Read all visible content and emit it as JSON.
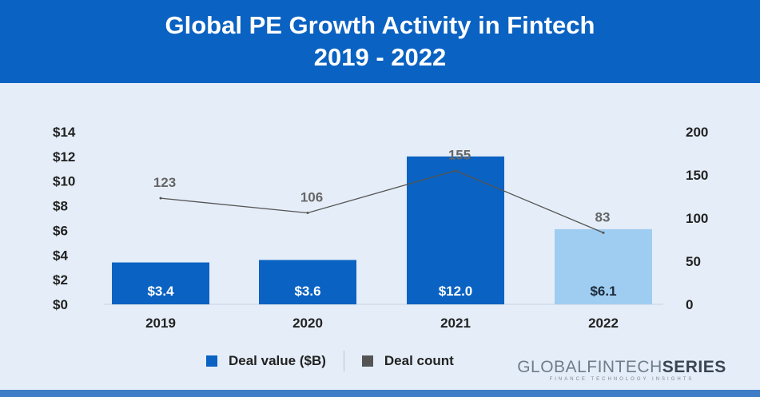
{
  "header": {
    "title_line1": "Global PE Growth Activity in Fintech",
    "title_line2": "2019 - 2022"
  },
  "chart_data": {
    "type": "bar",
    "categories": [
      "2019",
      "2020",
      "2021",
      "2022"
    ],
    "series": [
      {
        "name": "Deal value ($B)",
        "type": "bar",
        "axis": "left",
        "values": [
          3.4,
          3.6,
          12.0,
          6.1
        ],
        "labels": [
          "$3.4",
          "$3.6",
          "$12.0",
          "$6.1"
        ],
        "colors": [
          "#0a62c2",
          "#0a62c2",
          "#0a62c2",
          "#9fcdf1"
        ]
      },
      {
        "name": "Deal count",
        "type": "line",
        "axis": "right",
        "values": [
          123,
          106,
          155,
          83
        ],
        "labels": [
          "123",
          "106",
          "155",
          "83"
        ],
        "color": "#555555"
      }
    ],
    "y_left": {
      "ylim": [
        0,
        14
      ],
      "ticks": [
        0,
        2,
        4,
        6,
        8,
        10,
        12,
        14
      ],
      "tick_labels": [
        "$0",
        "$2",
        "$4",
        "$6",
        "$8",
        "$10",
        "$12",
        "$14"
      ]
    },
    "y_right": {
      "ylim": [
        0,
        200
      ],
      "ticks": [
        0,
        50,
        100,
        150,
        200
      ],
      "tick_labels": [
        "0",
        "50",
        "100",
        "150",
        "200"
      ]
    },
    "grid": false,
    "legend_position": "bottom"
  },
  "legend": {
    "items": [
      {
        "label": "Deal value ($B)",
        "color": "#0a62c2"
      },
      {
        "label": "Deal count",
        "color": "#555555"
      }
    ]
  },
  "brand": {
    "name_light": "GLOBALFINTECH",
    "name_bold": "SERIES",
    "tagline": "FINANCE TECHNOLOGY INSIGHTS"
  }
}
